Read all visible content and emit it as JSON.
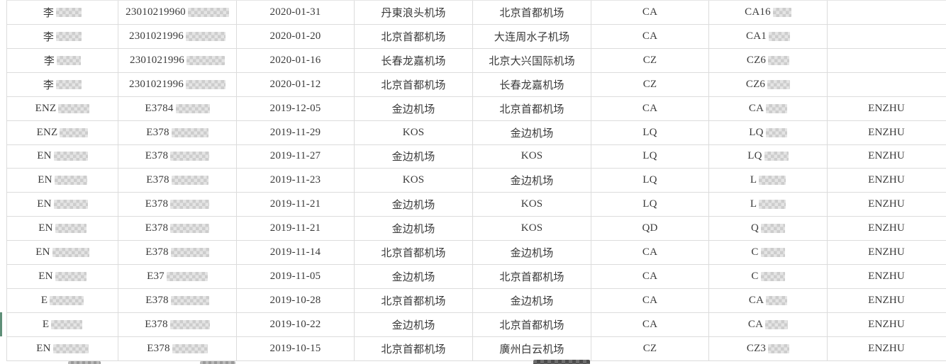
{
  "accent": {
    "row_marker_green": "#5f8f78",
    "grid_line": "#dcdcdc",
    "text": "#3a3a3a"
  },
  "table": {
    "column_semantics": [
      "passenger-name",
      "id-number",
      "flight-date",
      "departure-airport",
      "arrival-airport",
      "airline-code",
      "flight-number",
      "remark"
    ],
    "rows": [
      {
        "name": "李",
        "id": "23010219960",
        "date": "2020-01-31",
        "from": "丹東浪头机场",
        "to": "北京首都机场",
        "airline": "CA",
        "flight": "CA16",
        "remark": "",
        "masks": {
          "name": 36,
          "id": 58,
          "flight": 26
        }
      },
      {
        "name": "李",
        "id": "2301021996",
        "date": "2020-01-20",
        "from": "北京首都机场",
        "to": "大连周水子机场",
        "airline": "CA",
        "flight": "CA1",
        "remark": "",
        "masks": {
          "name": 36,
          "id": 56,
          "flight": 30
        }
      },
      {
        "name": "李",
        "id": "2301021996",
        "date": "2020-01-16",
        "from": "长春龙嘉机场",
        "to": "北京大兴国际机场",
        "airline": "CZ",
        "flight": "CZ6",
        "remark": "",
        "masks": {
          "name": 34,
          "id": 54,
          "flight": 30
        }
      },
      {
        "name": "李",
        "id": "2301021996",
        "date": "2020-01-12",
        "from": "北京首都机场",
        "to": "长春龙嘉机场",
        "airline": "CZ",
        "flight": "CZ6",
        "remark": "",
        "masks": {
          "name": 36,
          "id": 56,
          "flight": 32
        }
      },
      {
        "name": "ENZ",
        "id": "E3784",
        "date": "2019-12-05",
        "from": "金边机场",
        "to": "北京首都机场",
        "airline": "CA",
        "flight": "CA",
        "remark": "ENZHU",
        "masks": {
          "name": 44,
          "id": 48,
          "flight": 30
        }
      },
      {
        "name": "ENZ",
        "id": "E378",
        "date": "2019-11-29",
        "from": "KOS",
        "to": "金边机场",
        "airline": "LQ",
        "flight": "LQ",
        "remark": "ENZHU",
        "masks": {
          "name": 40,
          "id": 52,
          "flight": 30
        }
      },
      {
        "name": "EN",
        "id": "E378",
        "date": "2019-11-27",
        "from": "金边机场",
        "to": "KOS",
        "airline": "LQ",
        "flight": "LQ",
        "remark": "ENZHU",
        "masks": {
          "name": 48,
          "id": 55,
          "flight": 34
        }
      },
      {
        "name": "EN",
        "id": "E378",
        "date": "2019-11-23",
        "from": "KOS",
        "to": "金边机场",
        "airline": "LQ",
        "flight": "L",
        "remark": "ENZHU",
        "masks": {
          "name": 46,
          "id": 52,
          "flight": 38
        }
      },
      {
        "name": "EN",
        "id": "E378",
        "date": "2019-11-21",
        "from": "金边机场",
        "to": "KOS",
        "airline": "LQ",
        "flight": "L",
        "remark": "ENZHU",
        "masks": {
          "name": 48,
          "id": 55,
          "flight": 38
        }
      },
      {
        "name": "EN",
        "id": "E378",
        "date": "2019-11-21",
        "from": "金边机场",
        "to": "KOS",
        "airline": "QD",
        "flight": "Q",
        "remark": "ENZHU",
        "masks": {
          "name": 44,
          "id": 55,
          "flight": 34
        }
      },
      {
        "name": "EN",
        "id": "E378",
        "date": "2019-11-14",
        "from": "北京首都机场",
        "to": "金边机场",
        "airline": "CA",
        "flight": "C",
        "remark": "ENZHU",
        "masks": {
          "name": 52,
          "id": 54,
          "flight": 34
        }
      },
      {
        "name": "EN",
        "id": "E37",
        "date": "2019-11-05",
        "from": "金边机场",
        "to": "北京首都机场",
        "airline": "CA",
        "flight": "C",
        "remark": "ENZHU",
        "masks": {
          "name": 44,
          "id": 58,
          "flight": 34
        }
      },
      {
        "name": "E",
        "id": "E378",
        "date": "2019-10-28",
        "from": "北京首都机场",
        "to": "金边机场",
        "airline": "CA",
        "flight": "CA",
        "remark": "ENZHU",
        "masks": {
          "name": 48,
          "id": 54,
          "flight": 30
        }
      },
      {
        "name": "E",
        "id": "E378",
        "date": "2019-10-22",
        "from": "金边机场",
        "to": "北京首都机场",
        "airline": "CA",
        "flight": "CA",
        "remark": "ENZHU",
        "masks": {
          "name": 44,
          "id": 56,
          "flight": 32
        }
      },
      {
        "name": "EN",
        "id": "E378",
        "date": "2019-10-15",
        "from": "北京首都机场",
        "to": "廣州白云机场",
        "airline": "CZ",
        "flight": "CZ3",
        "remark": "ENZHU",
        "masks": {
          "name": 50,
          "id": 50,
          "flight": 30
        }
      }
    ],
    "selected_row_index": 13
  }
}
